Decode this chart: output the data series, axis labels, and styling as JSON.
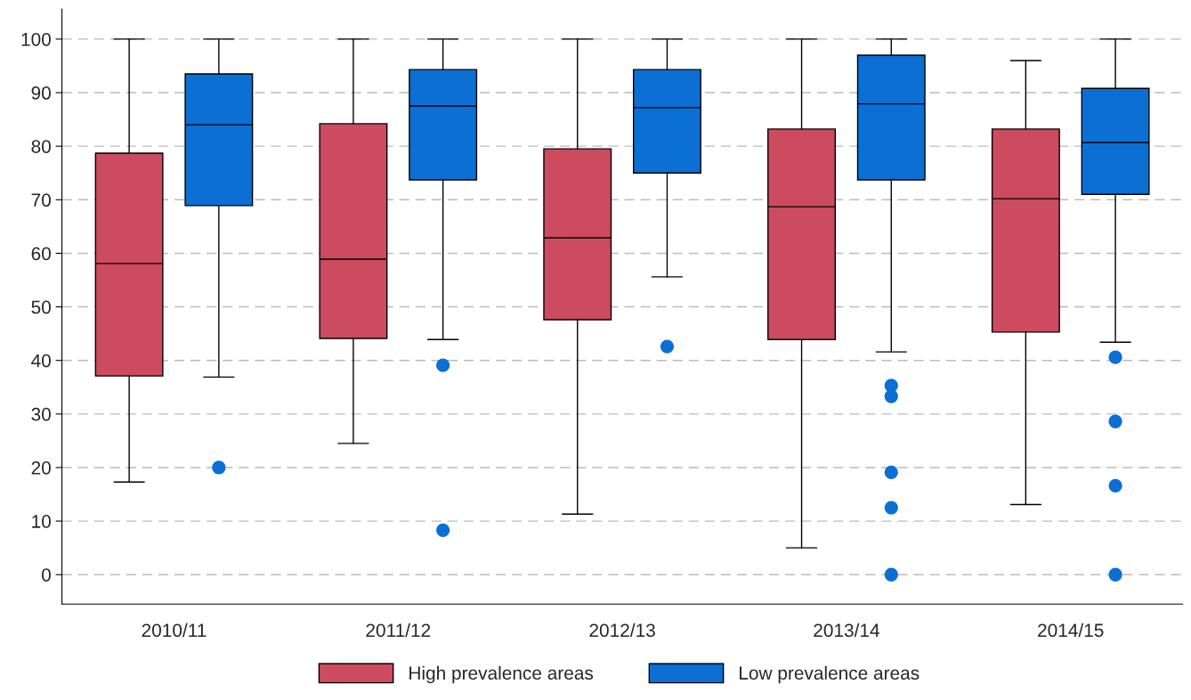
{
  "chart_data": {
    "type": "box",
    "categories": [
      "2010/11",
      "2011/12",
      "2012/13",
      "2013/14",
      "2014/15"
    ],
    "series": [
      {
        "name": "High prevalence areas",
        "color": "#cc4b5f",
        "boxes": [
          {
            "low": 17.3,
            "q1": 37.1,
            "median": 58.1,
            "q3": 78.7,
            "high": 100
          },
          {
            "low": 24.5,
            "q1": 44.1,
            "median": 58.9,
            "q3": 84.2,
            "high": 100
          },
          {
            "low": 11.3,
            "q1": 47.6,
            "median": 62.9,
            "q3": 79.5,
            "high": 100
          },
          {
            "low": 5.0,
            "q1": 43.9,
            "median": 68.7,
            "q3": 83.2,
            "high": 100
          },
          {
            "low": 13.1,
            "q1": 45.3,
            "median": 70.2,
            "q3": 83.2,
            "high": 96.0
          }
        ]
      },
      {
        "name": "Low prevalence areas",
        "color": "#0b6fd3",
        "boxes": [
          {
            "low": 36.9,
            "q1": 68.9,
            "median": 84.0,
            "q3": 93.5,
            "high": 100,
            "outliers": [
              20.0
            ]
          },
          {
            "low": 43.9,
            "q1": 73.7,
            "median": 87.5,
            "q3": 94.3,
            "high": 100,
            "outliers": [
              39.1,
              8.3
            ]
          },
          {
            "low": 55.6,
            "q1": 75.0,
            "median": 87.2,
            "q3": 94.3,
            "high": 100,
            "outliers": [
              42.6
            ]
          },
          {
            "low": 41.6,
            "q1": 73.7,
            "median": 87.9,
            "q3": 97.0,
            "high": 100,
            "outliers": [
              35.3,
              33.3,
              19.1,
              12.5,
              0
            ]
          },
          {
            "low": 43.4,
            "q1": 71.0,
            "median": 80.7,
            "q3": 90.8,
            "high": 100,
            "outliers": [
              40.6,
              28.6,
              16.6,
              0
            ]
          }
        ]
      }
    ],
    "ylim": [
      -5.5,
      105.6
    ],
    "yticks": [
      0,
      10,
      20,
      30,
      40,
      50,
      60,
      70,
      80,
      90,
      100
    ],
    "grid": "y",
    "legend": "bottom"
  }
}
